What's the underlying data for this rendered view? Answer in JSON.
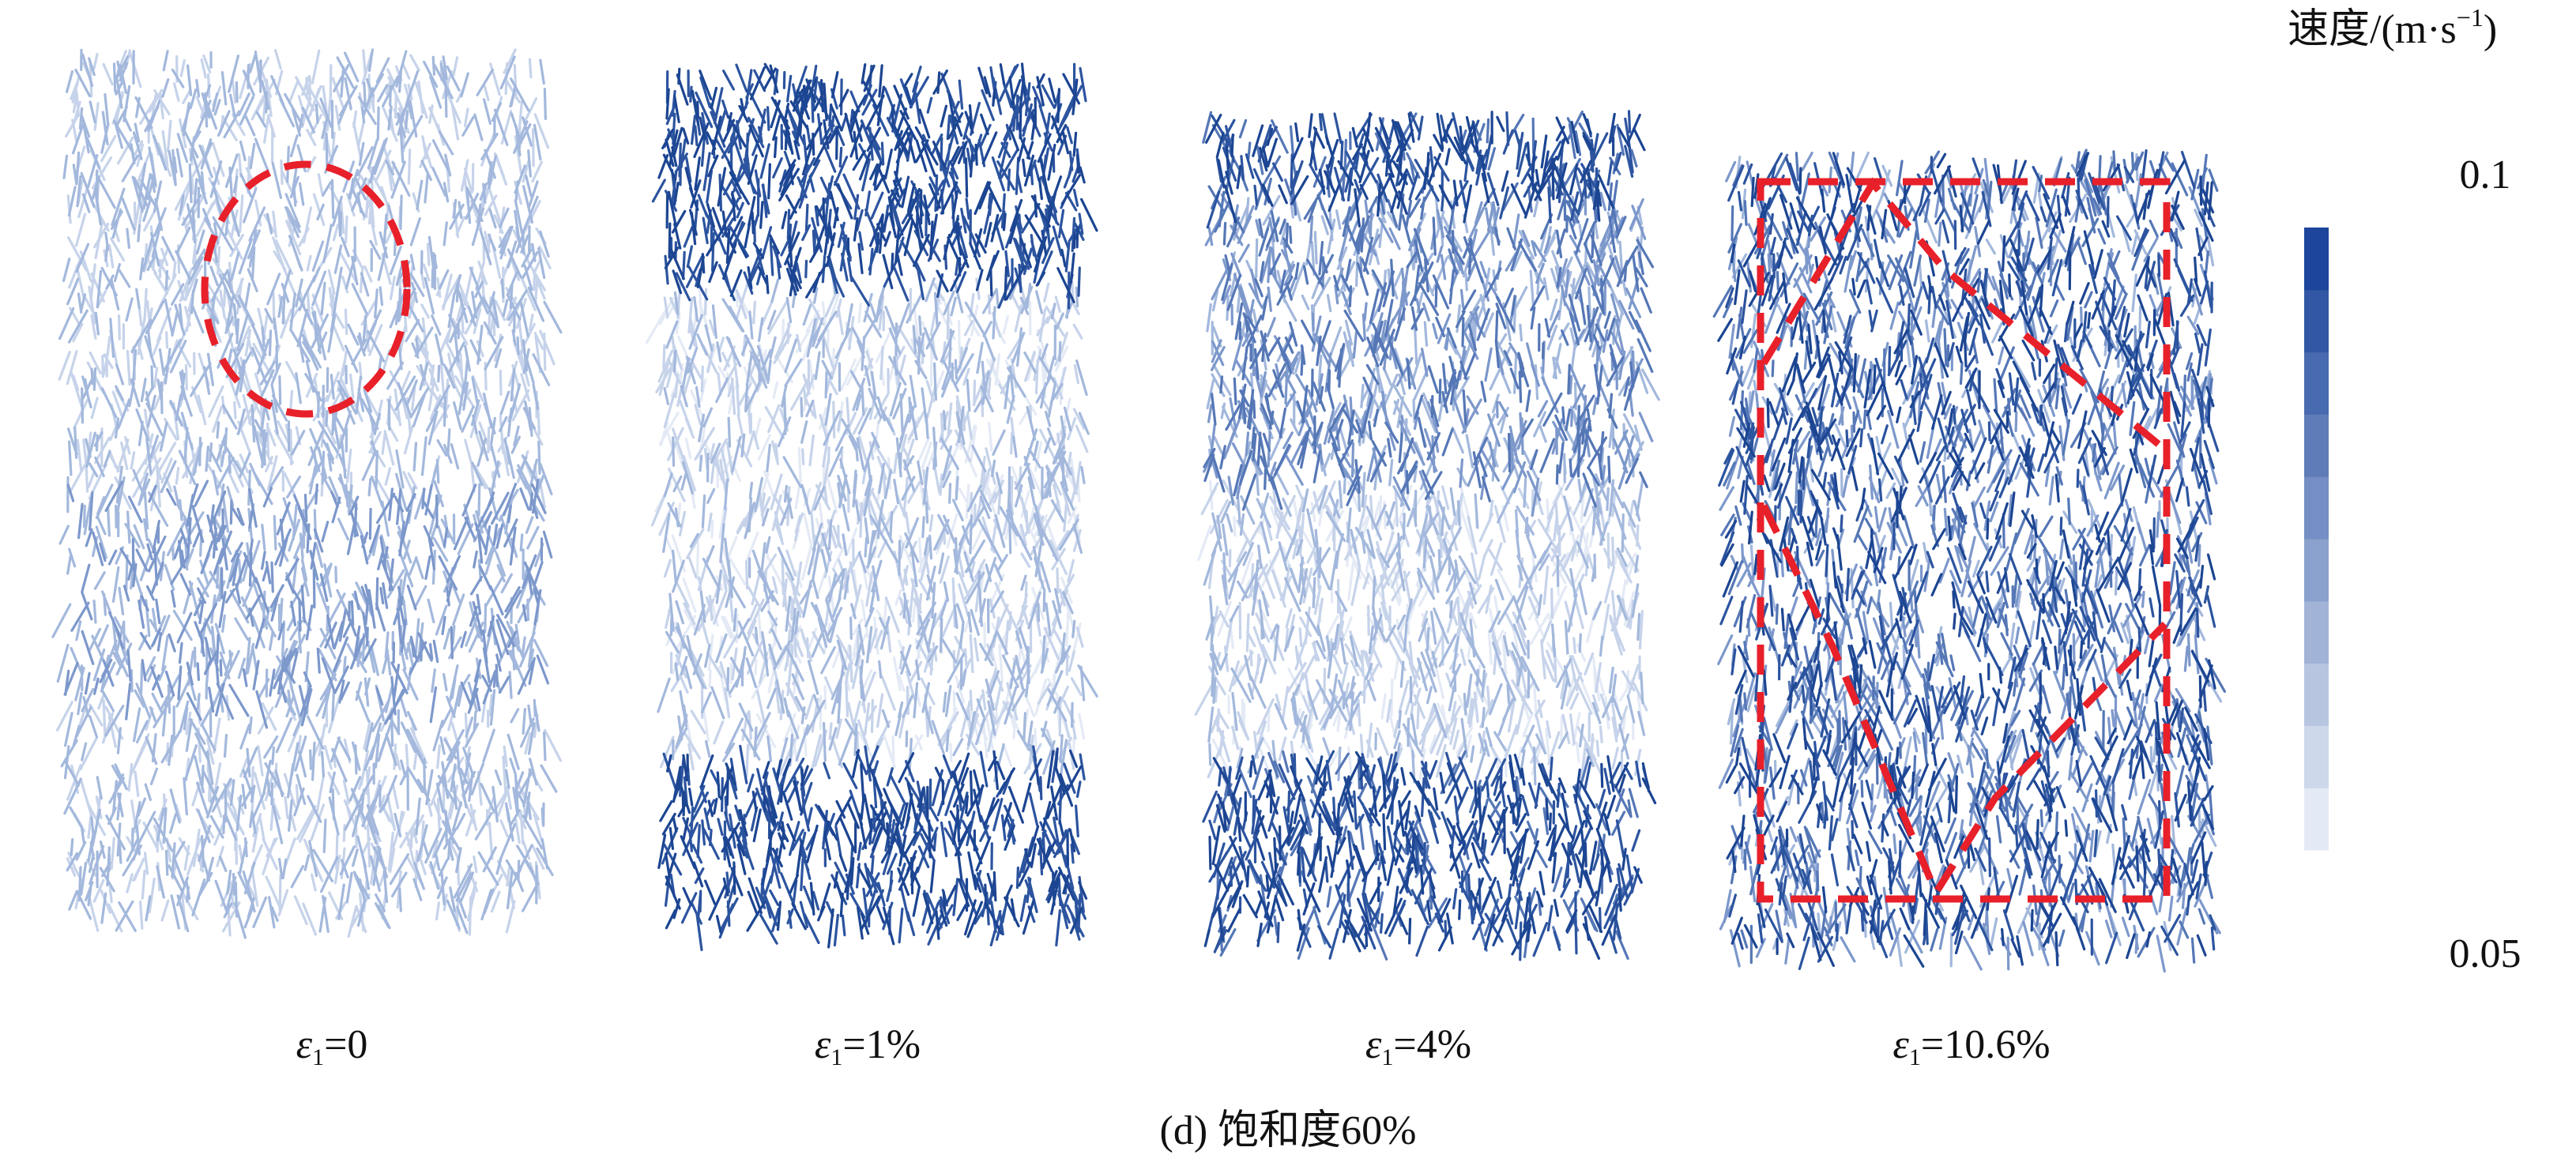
{
  "figure": {
    "panels": [
      {
        "symbol": "ε",
        "subscript": "1",
        "text": "=0"
      },
      {
        "symbol": "ε",
        "subscript": "1",
        "text": "=1%"
      },
      {
        "symbol": "ε",
        "subscript": "1",
        "text": "=4%"
      },
      {
        "symbol": "ε",
        "subscript": "1",
        "text": "=10.6%"
      }
    ],
    "caption": "(d) 饱和度60%",
    "colorbar": {
      "title": "速度/(m·s",
      "superscript": "−1",
      "title_end": ")",
      "ticks": [
        0.05,
        0.1
      ]
    }
  }
}
